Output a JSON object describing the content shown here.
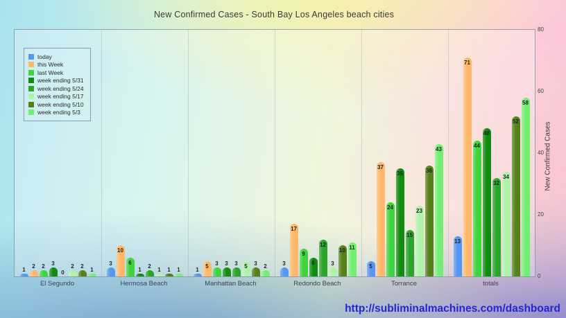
{
  "title": "New Confirmed Cases - South Bay Los Angeles beach cities",
  "footer": {
    "url": "http://subliminalmachines.com/dashboard"
  },
  "chart_data": {
    "type": "bar",
    "title": "New Confirmed Cases - South Bay Los Angeles beach cities",
    "xlabel": "",
    "ylabel": "New Confirmed Cases",
    "ylim": [
      0,
      80
    ],
    "yticks": [
      0,
      20,
      40,
      60,
      80
    ],
    "grid": "vertical-category-separators",
    "legend_position": "top-left",
    "categories": [
      "El Segundo",
      "Hermosa Beach",
      "Manhattan Beach",
      "Redondo Beach",
      "Torrance",
      "totals"
    ],
    "series": [
      {
        "name": "today",
        "color": "#5596f0",
        "values": [
          1,
          3,
          1,
          3,
          5,
          13
        ]
      },
      {
        "name": "this Week",
        "color": "#ffb869",
        "values": [
          2,
          10,
          5,
          17,
          37,
          71
        ]
      },
      {
        "name": "last Week",
        "color": "#3ed43e",
        "values": [
          2,
          6,
          3,
          9,
          24,
          44
        ]
      },
      {
        "name": "week ending 5/31",
        "color": "#108c10",
        "values": [
          3,
          1,
          3,
          6,
          35,
          48
        ]
      },
      {
        "name": "week ending 5/24",
        "color": "#2aa52a",
        "values": [
          0,
          2,
          3,
          12,
          15,
          32
        ]
      },
      {
        "name": "week ending 5/17",
        "color": "#aff2a8",
        "values": [
          2,
          1,
          5,
          3,
          23,
          34
        ]
      },
      {
        "name": "week ending 5/10",
        "color": "#55801a",
        "values": [
          2,
          1,
          3,
          10,
          36,
          52
        ]
      },
      {
        "name": "week ending 5/3",
        "color": "#72ee72",
        "values": [
          1,
          1,
          2,
          11,
          43,
          58
        ]
      }
    ]
  }
}
